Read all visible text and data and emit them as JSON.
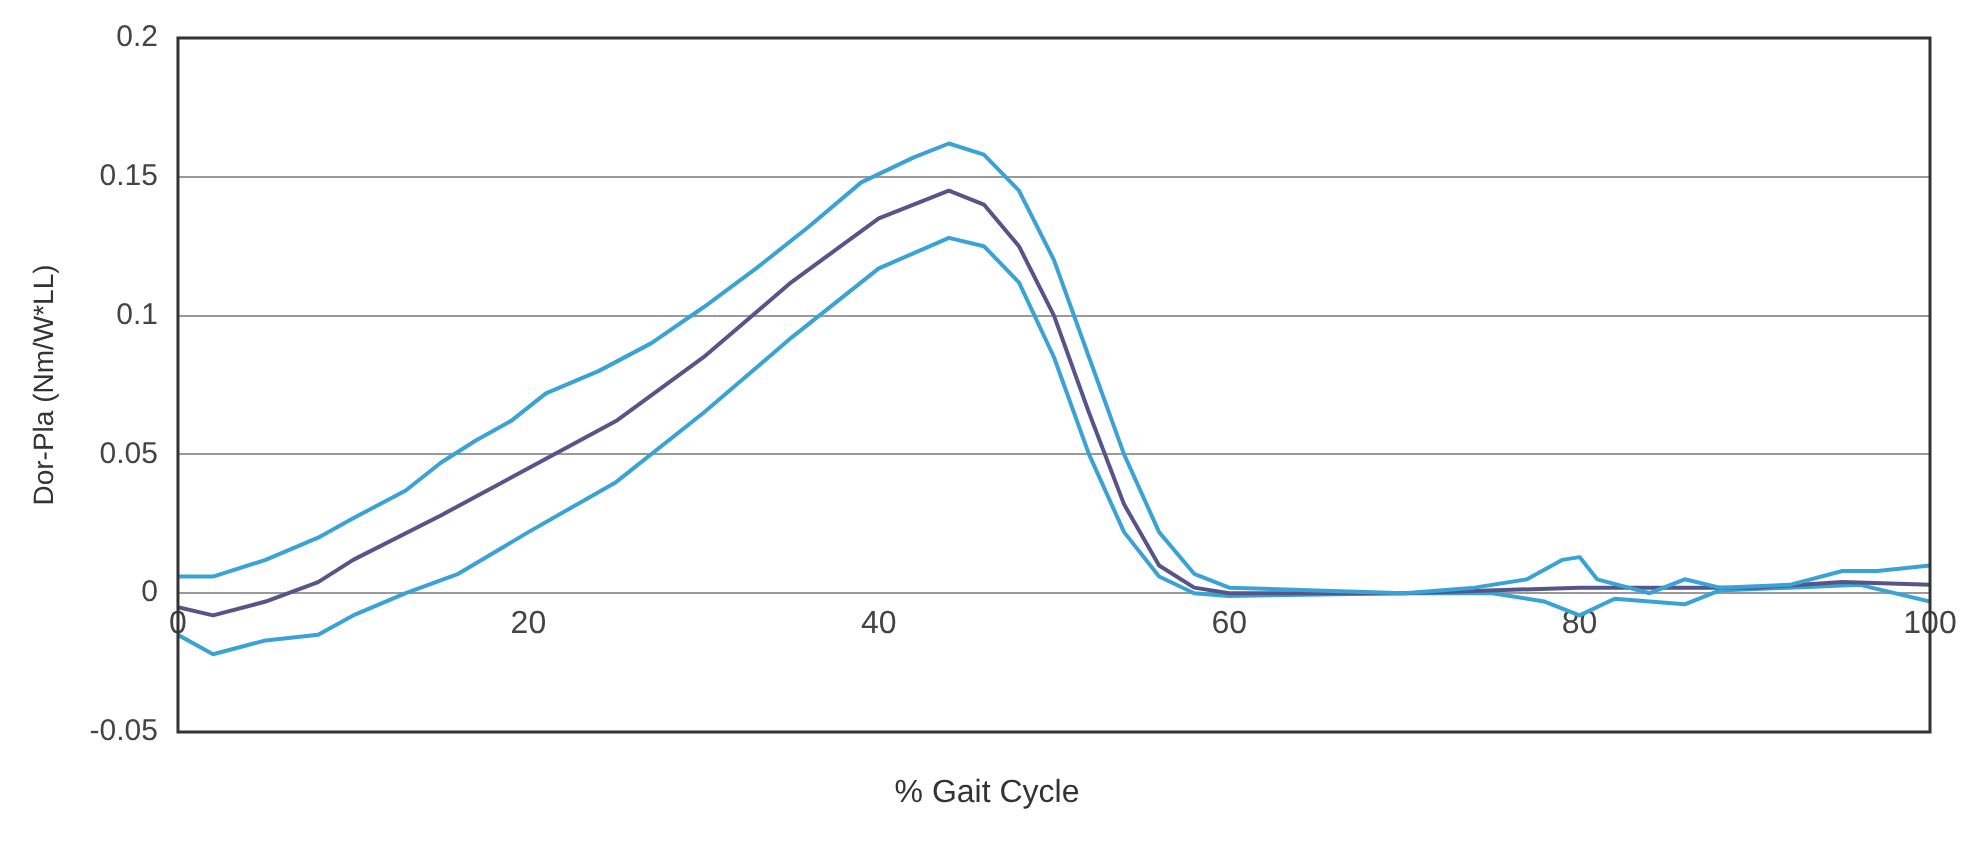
{
  "chart_data": {
    "type": "line",
    "xlabel": "% Gait Cycle",
    "ylabel": "Dor-Pla (Nm/W*LL)",
    "xlim": [
      0,
      100
    ],
    "xticks": [
      0,
      20,
      40,
      60,
      80,
      100
    ],
    "ylim": [
      -0.05,
      0.2
    ],
    "yticks": [
      -0.05,
      0,
      0.05,
      0.1,
      0.15,
      0.2
    ],
    "grid": "y",
    "legend": false,
    "marker": "none",
    "line_style": "solid",
    "series": [
      {
        "color": "#3aa3d6",
        "x": [
          0,
          2,
          5,
          8,
          10,
          13,
          15,
          17,
          19,
          21,
          24,
          27,
          30,
          33,
          36,
          39,
          42,
          44,
          46,
          48,
          50,
          52,
          54,
          56,
          58,
          60,
          65,
          70,
          74,
          77,
          79,
          80,
          81,
          84,
          86,
          88,
          92,
          95,
          97,
          100
        ],
        "values": [
          0.006,
          0.006,
          0.012,
          0.02,
          0.027,
          0.037,
          0.047,
          0.055,
          0.062,
          0.072,
          0.08,
          0.09,
          0.103,
          0.117,
          0.132,
          0.148,
          0.157,
          0.162,
          0.158,
          0.145,
          0.12,
          0.085,
          0.05,
          0.022,
          0.007,
          0.002,
          0.001,
          0,
          0.002,
          0.005,
          0.012,
          0.013,
          0.005,
          0,
          0.005,
          0.002,
          0.003,
          0.008,
          0.008,
          0.01
        ]
      },
      {
        "color": "#55558a",
        "x": [
          0,
          2,
          5,
          8,
          10,
          15,
          20,
          25,
          30,
          35,
          40,
          44,
          46,
          48,
          50,
          52,
          54,
          56,
          58,
          60,
          70,
          80,
          90,
          95,
          100
        ],
        "values": [
          -0.005,
          -0.008,
          -0.003,
          0.004,
          0.012,
          0.028,
          0.045,
          0.062,
          0.085,
          0.112,
          0.135,
          0.145,
          0.14,
          0.125,
          0.1,
          0.065,
          0.032,
          0.01,
          0.002,
          0,
          0,
          0.002,
          0.002,
          0.004,
          0.003
        ]
      },
      {
        "color": "#3aa3d6",
        "x": [
          0,
          2,
          5,
          8,
          10,
          13,
          16,
          20,
          25,
          30,
          35,
          40,
          44,
          46,
          48,
          50,
          52,
          54,
          56,
          58,
          60,
          70,
          75,
          78,
          80,
          82,
          86,
          88,
          92,
          96,
          100
        ],
        "values": [
          -0.015,
          -0.022,
          -0.017,
          -0.015,
          -0.008,
          0,
          0.007,
          0.022,
          0.04,
          0.065,
          0.092,
          0.117,
          0.128,
          0.125,
          0.112,
          0.085,
          0.05,
          0.022,
          0.006,
          0,
          -0.001,
          0,
          0,
          -0.003,
          -0.008,
          -0.002,
          -0.004,
          0.001,
          0.002,
          0.003,
          -0.003
        ]
      }
    ]
  }
}
